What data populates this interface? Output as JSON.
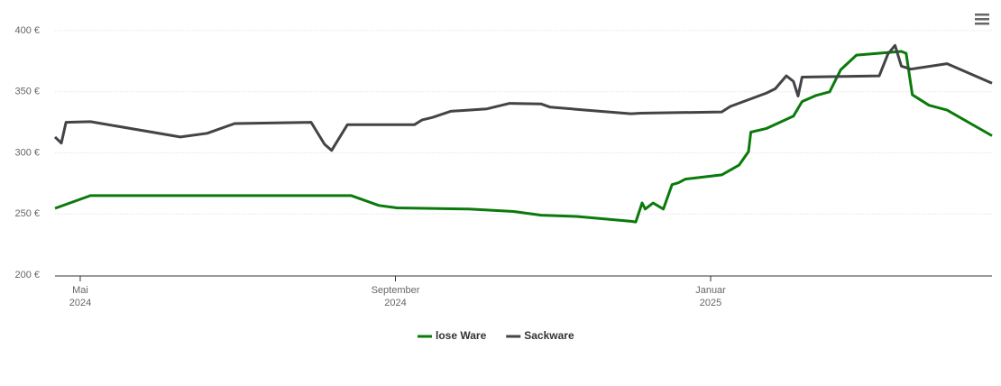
{
  "chart_data": {
    "type": "line",
    "xlim": [
      3.68,
      15.57
    ],
    "xticks": [
      {
        "value": 4,
        "label": "Mai",
        "year": "2024"
      },
      {
        "value": 8,
        "label": "September",
        "year": "2024"
      },
      {
        "value": 12,
        "label": "Januar",
        "year": "2025"
      }
    ],
    "ylim": [
      200,
      400
    ],
    "yticks": [
      {
        "value": 200,
        "label": "200 €"
      },
      {
        "value": 250,
        "label": "250 €"
      },
      {
        "value": 300,
        "label": "300 €"
      },
      {
        "value": 350,
        "label": "350 €"
      },
      {
        "value": 400,
        "label": "400 €"
      }
    ],
    "grid": true,
    "legend": "bottom",
    "series": [
      {
        "name": "lose Ware",
        "color": "#0a7a0a",
        "x": [
          3.68,
          4.13,
          7.44,
          7.79,
          8.02,
          8.93,
          9.5,
          9.85,
          10.3,
          10.99,
          11.05,
          11.13,
          11.17,
          11.27,
          11.4,
          11.51,
          11.59,
          11.68,
          12.14,
          12.36,
          12.48,
          12.51,
          12.71,
          13.05,
          13.16,
          13.34,
          13.51,
          13.65,
          13.85,
          14.42,
          14.48,
          14.56,
          14.77,
          15.0,
          15.57
        ],
        "values": [
          254.6,
          265,
          265,
          257,
          255,
          254,
          252,
          249,
          248,
          244,
          243.5,
          259,
          254,
          259,
          254,
          274,
          275.5,
          278.5,
          282,
          290,
          301,
          317,
          320,
          330,
          342,
          347,
          350,
          368,
          380,
          383,
          381.5,
          347.5,
          339,
          335,
          314
        ]
      },
      {
        "name": "Sackware",
        "color": "#434348",
        "x": [
          3.68,
          3.76,
          3.82,
          4.13,
          5.27,
          5.61,
          5.96,
          6.93,
          7.1,
          7.19,
          7.39,
          8.24,
          8.34,
          8.47,
          8.7,
          9.16,
          9.45,
          9.85,
          9.96,
          10.42,
          10.99,
          11.11,
          12.14,
          12.25,
          12.71,
          12.82,
          12.96,
          13.05,
          13.11,
          13.16,
          14.14,
          14.25,
          14.34,
          14.42,
          14.54,
          15.0,
          15.57
        ],
        "values": [
          313,
          308,
          325,
          325.5,
          313,
          316,
          324,
          325,
          307,
          302,
          323,
          323,
          327,
          329,
          334,
          336,
          340.5,
          340,
          337.5,
          335,
          332,
          332.5,
          333.5,
          338,
          349,
          352.5,
          363,
          358.5,
          346.5,
          362,
          363,
          381,
          388,
          371,
          368.5,
          373,
          357
        ]
      }
    ]
  }
}
